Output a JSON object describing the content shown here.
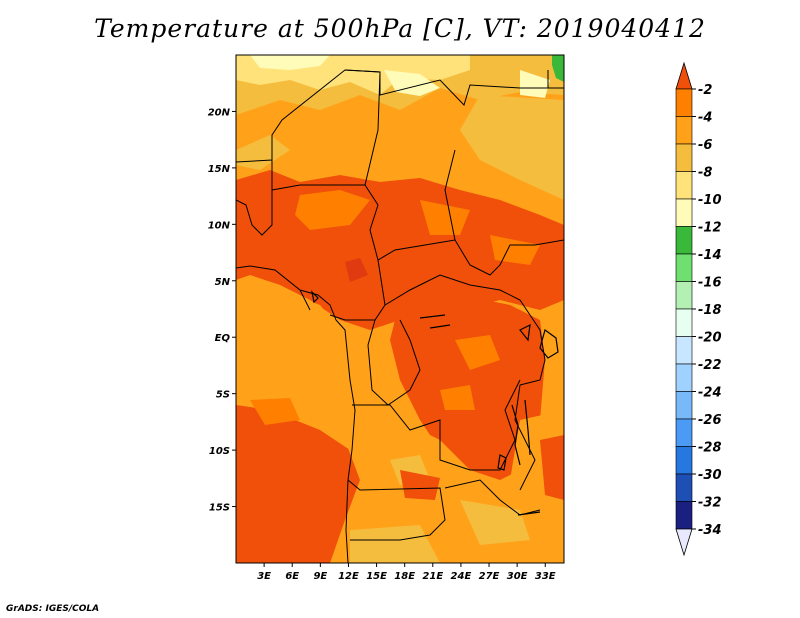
{
  "title": "Temperature at 500hPa [C], VT: 2019040412",
  "credit": "GrADS: IGES/COLA",
  "map": {
    "lat_labels": [
      "20N",
      "15N",
      "10N",
      "5N",
      "EQ",
      "5S",
      "10S",
      "15S"
    ],
    "lon_labels": [
      "3E",
      "6E",
      "9E",
      "12E",
      "15E",
      "18E",
      "21E",
      "24E",
      "27E",
      "30E",
      "33E"
    ],
    "lat_range": [
      -20,
      25
    ],
    "lon_range": [
      0,
      35
    ]
  },
  "colorbar": {
    "levels": [
      "-2",
      "-4",
      "-6",
      "-8",
      "-10",
      "-12",
      "-14",
      "-16",
      "-18",
      "-20",
      "-22",
      "-24",
      "-26",
      "-28",
      "-30",
      "-32",
      "-34"
    ],
    "colors": [
      "#f0500a",
      "#ff7f00",
      "#ffa21a",
      "#f5bd3d",
      "#ffe37a",
      "#fffbb8",
      "#3ab83a",
      "#6fdf6f",
      "#b4f0b4",
      "#e6fff0",
      "#c8e6ff",
      "#a0d2ff",
      "#78b9fa",
      "#4b9af5",
      "#2677e0",
      "#1e4fb4",
      "#1a2080"
    ],
    "top_color": "#f0500a",
    "bottom_color": "#e8e8ff"
  }
}
